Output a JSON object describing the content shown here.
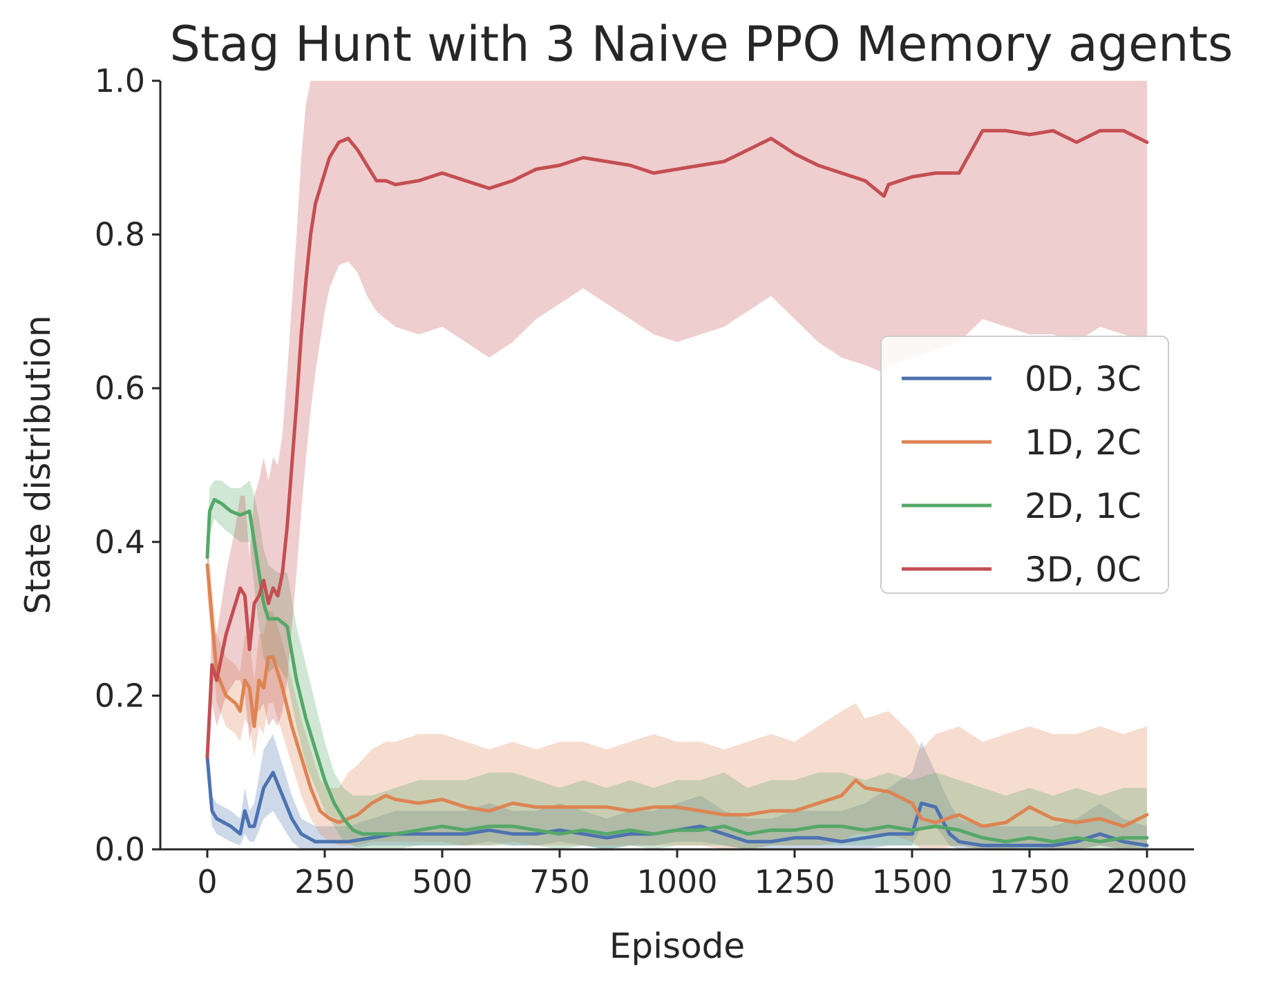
{
  "chart_data": {
    "type": "line",
    "title": "Stag Hunt with 3 Naive PPO Memory agents",
    "xlabel": "Episode",
    "ylabel": "State distribution",
    "xlim": [
      -100,
      2100
    ],
    "ylim": [
      0.0,
      1.0
    ],
    "xticks": [
      0,
      250,
      500,
      750,
      1000,
      1250,
      1500,
      1750,
      2000
    ],
    "xtick_labels": [
      "0",
      "250",
      "500",
      "750",
      "1000",
      "1250",
      "1500",
      "1750",
      "2000"
    ],
    "yticks": [
      0.0,
      0.2,
      0.4,
      0.6,
      0.8,
      1.0
    ],
    "ytick_labels": [
      "0.0",
      "0.2",
      "0.4",
      "0.6",
      "0.8",
      "1.0"
    ],
    "grid": false,
    "legend_position": "center-right",
    "band": "mean with shaded spread",
    "series": [
      {
        "name": "0D, 3C",
        "color": "#4c72b0",
        "x": [
          0,
          10,
          20,
          50,
          70,
          80,
          90,
          100,
          120,
          140,
          160,
          180,
          200,
          230,
          260,
          300,
          350,
          400,
          450,
          500,
          550,
          600,
          650,
          700,
          750,
          800,
          850,
          900,
          950,
          1000,
          1050,
          1100,
          1150,
          1200,
          1250,
          1300,
          1350,
          1400,
          1450,
          1500,
          1520,
          1550,
          1580,
          1600,
          1650,
          1700,
          1750,
          1800,
          1850,
          1900,
          1950,
          2000
        ],
        "y": [
          0.12,
          0.05,
          0.04,
          0.03,
          0.02,
          0.05,
          0.03,
          0.03,
          0.08,
          0.1,
          0.07,
          0.04,
          0.02,
          0.01,
          0.01,
          0.01,
          0.015,
          0.02,
          0.02,
          0.02,
          0.02,
          0.025,
          0.02,
          0.02,
          0.025,
          0.02,
          0.015,
          0.02,
          0.02,
          0.025,
          0.03,
          0.02,
          0.01,
          0.01,
          0.015,
          0.015,
          0.01,
          0.015,
          0.02,
          0.02,
          0.06,
          0.055,
          0.02,
          0.01,
          0.005,
          0.005,
          0.005,
          0.005,
          0.01,
          0.02,
          0.01,
          0.005
        ],
        "lower": [
          0.1,
          0.03,
          0.02,
          0.01,
          0.005,
          0.02,
          0.01,
          0.01,
          0.04,
          0.05,
          0.03,
          0.01,
          0.0,
          0.0,
          0.0,
          0.0,
          0.005,
          0.005,
          0.005,
          0.005,
          0.005,
          0.01,
          0.005,
          0.005,
          0.01,
          0.005,
          0.0,
          0.005,
          0.005,
          0.01,
          0.01,
          0.005,
          0.0,
          0.0,
          0.0,
          0.0,
          0.0,
          0.0,
          0.005,
          0.005,
          0.03,
          0.03,
          0.005,
          0.0,
          0.0,
          0.0,
          0.0,
          0.0,
          0.0,
          0.005,
          0.0,
          0.0
        ],
        "upper": [
          0.14,
          0.07,
          0.06,
          0.05,
          0.04,
          0.08,
          0.05,
          0.06,
          0.13,
          0.15,
          0.11,
          0.07,
          0.04,
          0.03,
          0.03,
          0.03,
          0.04,
          0.05,
          0.05,
          0.05,
          0.05,
          0.06,
          0.05,
          0.05,
          0.06,
          0.05,
          0.04,
          0.05,
          0.05,
          0.06,
          0.07,
          0.05,
          0.04,
          0.04,
          0.05,
          0.05,
          0.05,
          0.06,
          0.08,
          0.1,
          0.14,
          0.1,
          0.06,
          0.04,
          0.03,
          0.03,
          0.03,
          0.03,
          0.04,
          0.06,
          0.04,
          0.03
        ]
      },
      {
        "name": "1D, 2C",
        "color": "#dd8452",
        "x": [
          0,
          10,
          20,
          40,
          60,
          70,
          80,
          90,
          100,
          110,
          120,
          130,
          140,
          150,
          160,
          180,
          200,
          220,
          240,
          260,
          280,
          300,
          320,
          350,
          380,
          400,
          450,
          500,
          550,
          600,
          650,
          700,
          750,
          800,
          850,
          900,
          950,
          1000,
          1050,
          1100,
          1150,
          1200,
          1250,
          1300,
          1350,
          1380,
          1400,
          1450,
          1500,
          1520,
          1550,
          1600,
          1650,
          1700,
          1750,
          1800,
          1850,
          1900,
          1950,
          2000
        ],
        "y": [
          0.37,
          0.3,
          0.23,
          0.2,
          0.19,
          0.18,
          0.22,
          0.21,
          0.16,
          0.22,
          0.21,
          0.25,
          0.25,
          0.23,
          0.21,
          0.16,
          0.12,
          0.08,
          0.05,
          0.04,
          0.035,
          0.04,
          0.045,
          0.06,
          0.07,
          0.065,
          0.06,
          0.065,
          0.055,
          0.05,
          0.06,
          0.055,
          0.055,
          0.055,
          0.055,
          0.05,
          0.055,
          0.055,
          0.05,
          0.045,
          0.045,
          0.05,
          0.05,
          0.06,
          0.07,
          0.09,
          0.08,
          0.075,
          0.06,
          0.04,
          0.035,
          0.045,
          0.03,
          0.035,
          0.055,
          0.04,
          0.035,
          0.04,
          0.03,
          0.045
        ],
        "lower": [
          0.33,
          0.26,
          0.19,
          0.16,
          0.15,
          0.14,
          0.17,
          0.16,
          0.12,
          0.16,
          0.15,
          0.19,
          0.19,
          0.17,
          0.15,
          0.11,
          0.07,
          0.04,
          0.02,
          0.01,
          0.005,
          0.005,
          0.005,
          0.01,
          0.01,
          0.01,
          0.01,
          0.01,
          0.005,
          0.005,
          0.01,
          0.005,
          0.005,
          0.005,
          0.005,
          0.005,
          0.005,
          0.005,
          0.005,
          0.0,
          0.0,
          0.005,
          0.005,
          0.005,
          0.01,
          0.02,
          0.02,
          0.02,
          0.01,
          0.0,
          0.0,
          0.005,
          0.0,
          0.0,
          0.005,
          0.0,
          0.0,
          0.005,
          0.0,
          0.005
        ],
        "upper": [
          0.41,
          0.34,
          0.28,
          0.25,
          0.24,
          0.23,
          0.28,
          0.27,
          0.22,
          0.28,
          0.28,
          0.31,
          0.31,
          0.29,
          0.27,
          0.22,
          0.17,
          0.13,
          0.09,
          0.08,
          0.08,
          0.1,
          0.11,
          0.13,
          0.14,
          0.14,
          0.15,
          0.15,
          0.14,
          0.13,
          0.14,
          0.13,
          0.14,
          0.14,
          0.13,
          0.14,
          0.15,
          0.14,
          0.14,
          0.13,
          0.14,
          0.15,
          0.14,
          0.16,
          0.18,
          0.19,
          0.17,
          0.18,
          0.15,
          0.13,
          0.15,
          0.16,
          0.14,
          0.15,
          0.16,
          0.15,
          0.15,
          0.16,
          0.15,
          0.16
        ]
      },
      {
        "name": "2D, 1C",
        "color": "#55a868",
        "x": [
          0,
          5,
          15,
          30,
          50,
          70,
          90,
          100,
          110,
          120,
          130,
          150,
          170,
          190,
          210,
          230,
          250,
          270,
          290,
          310,
          330,
          350,
          400,
          450,
          500,
          550,
          600,
          650,
          700,
          750,
          800,
          850,
          900,
          950,
          1000,
          1050,
          1100,
          1150,
          1200,
          1250,
          1300,
          1350,
          1400,
          1450,
          1500,
          1550,
          1600,
          1650,
          1700,
          1750,
          1800,
          1850,
          1900,
          1950,
          2000
        ],
        "y": [
          0.38,
          0.44,
          0.455,
          0.45,
          0.44,
          0.435,
          0.44,
          0.4,
          0.36,
          0.32,
          0.3,
          0.3,
          0.29,
          0.22,
          0.17,
          0.13,
          0.09,
          0.06,
          0.04,
          0.025,
          0.02,
          0.02,
          0.02,
          0.025,
          0.03,
          0.025,
          0.03,
          0.03,
          0.025,
          0.02,
          0.025,
          0.02,
          0.025,
          0.02,
          0.025,
          0.025,
          0.03,
          0.02,
          0.025,
          0.025,
          0.03,
          0.03,
          0.025,
          0.03,
          0.025,
          0.03,
          0.025,
          0.015,
          0.01,
          0.015,
          0.01,
          0.015,
          0.01,
          0.015,
          0.015
        ],
        "lower": [
          0.34,
          0.41,
          0.43,
          0.42,
          0.41,
          0.4,
          0.4,
          0.34,
          0.29,
          0.25,
          0.23,
          0.24,
          0.22,
          0.16,
          0.11,
          0.08,
          0.05,
          0.03,
          0.01,
          0.005,
          0.0,
          0.0,
          0.0,
          0.005,
          0.005,
          0.005,
          0.005,
          0.005,
          0.005,
          0.0,
          0.005,
          0.0,
          0.005,
          0.0,
          0.005,
          0.005,
          0.005,
          0.0,
          0.005,
          0.005,
          0.005,
          0.005,
          0.005,
          0.005,
          0.005,
          0.005,
          0.005,
          0.0,
          0.0,
          0.0,
          0.0,
          0.0,
          0.0,
          0.0,
          0.0
        ],
        "upper": [
          0.42,
          0.47,
          0.48,
          0.48,
          0.47,
          0.47,
          0.48,
          0.46,
          0.43,
          0.39,
          0.37,
          0.36,
          0.36,
          0.29,
          0.24,
          0.19,
          0.14,
          0.1,
          0.08,
          0.07,
          0.07,
          0.07,
          0.08,
          0.09,
          0.09,
          0.09,
          0.1,
          0.1,
          0.09,
          0.08,
          0.09,
          0.08,
          0.09,
          0.08,
          0.09,
          0.09,
          0.1,
          0.08,
          0.09,
          0.09,
          0.1,
          0.1,
          0.09,
          0.1,
          0.09,
          0.1,
          0.09,
          0.08,
          0.07,
          0.08,
          0.07,
          0.08,
          0.07,
          0.08,
          0.08
        ]
      },
      {
        "name": "3D, 0C",
        "color": "#c44e52",
        "x": [
          0,
          5,
          10,
          20,
          40,
          50,
          60,
          70,
          80,
          90,
          100,
          110,
          120,
          130,
          140,
          150,
          160,
          170,
          180,
          190,
          200,
          210,
          220,
          230,
          240,
          250,
          260,
          280,
          300,
          320,
          340,
          360,
          380,
          400,
          450,
          500,
          550,
          600,
          650,
          700,
          750,
          800,
          850,
          900,
          950,
          1000,
          1050,
          1100,
          1150,
          1200,
          1250,
          1300,
          1350,
          1400,
          1440,
          1450,
          1500,
          1550,
          1600,
          1650,
          1700,
          1750,
          1800,
          1850,
          1900,
          1950,
          2000
        ],
        "y": [
          0.12,
          0.18,
          0.24,
          0.22,
          0.28,
          0.3,
          0.32,
          0.34,
          0.33,
          0.26,
          0.32,
          0.33,
          0.35,
          0.32,
          0.34,
          0.33,
          0.36,
          0.42,
          0.5,
          0.58,
          0.67,
          0.74,
          0.8,
          0.84,
          0.86,
          0.88,
          0.9,
          0.92,
          0.925,
          0.91,
          0.89,
          0.87,
          0.87,
          0.865,
          0.87,
          0.88,
          0.87,
          0.86,
          0.87,
          0.885,
          0.89,
          0.9,
          0.895,
          0.89,
          0.88,
          0.885,
          0.89,
          0.895,
          0.91,
          0.925,
          0.905,
          0.89,
          0.88,
          0.87,
          0.85,
          0.865,
          0.875,
          0.88,
          0.88,
          0.935,
          0.935,
          0.93,
          0.935,
          0.92,
          0.935,
          0.935,
          0.92
        ],
        "lower": [
          0.1,
          0.14,
          0.19,
          0.16,
          0.2,
          0.21,
          0.22,
          0.22,
          0.2,
          0.14,
          0.18,
          0.18,
          0.19,
          0.16,
          0.17,
          0.16,
          0.18,
          0.22,
          0.29,
          0.36,
          0.44,
          0.51,
          0.57,
          0.62,
          0.66,
          0.7,
          0.73,
          0.76,
          0.765,
          0.75,
          0.72,
          0.7,
          0.69,
          0.68,
          0.67,
          0.68,
          0.66,
          0.64,
          0.66,
          0.69,
          0.71,
          0.73,
          0.71,
          0.69,
          0.67,
          0.66,
          0.67,
          0.68,
          0.7,
          0.72,
          0.69,
          0.66,
          0.64,
          0.63,
          0.62,
          0.63,
          0.64,
          0.65,
          0.66,
          0.69,
          0.68,
          0.67,
          0.67,
          0.66,
          0.68,
          0.67,
          0.66
        ],
        "upper": [
          0.14,
          0.22,
          0.29,
          0.28,
          0.36,
          0.39,
          0.42,
          0.46,
          0.46,
          0.38,
          0.46,
          0.48,
          0.51,
          0.48,
          0.51,
          0.5,
          0.54,
          0.62,
          0.71,
          0.8,
          0.9,
          0.97,
          1.0,
          1.0,
          1.0,
          1.0,
          1.0,
          1.0,
          1.0,
          1.0,
          1.0,
          1.0,
          1.0,
          1.0,
          1.0,
          1.0,
          1.0,
          1.0,
          1.0,
          1.0,
          1.0,
          1.0,
          1.0,
          1.0,
          1.0,
          1.0,
          1.0,
          1.0,
          1.0,
          1.0,
          1.0,
          1.0,
          1.0,
          1.0,
          1.0,
          1.0,
          1.0,
          1.0,
          1.0,
          1.0,
          1.0,
          1.0,
          1.0,
          1.0,
          1.0,
          1.0,
          1.0
        ]
      }
    ]
  }
}
